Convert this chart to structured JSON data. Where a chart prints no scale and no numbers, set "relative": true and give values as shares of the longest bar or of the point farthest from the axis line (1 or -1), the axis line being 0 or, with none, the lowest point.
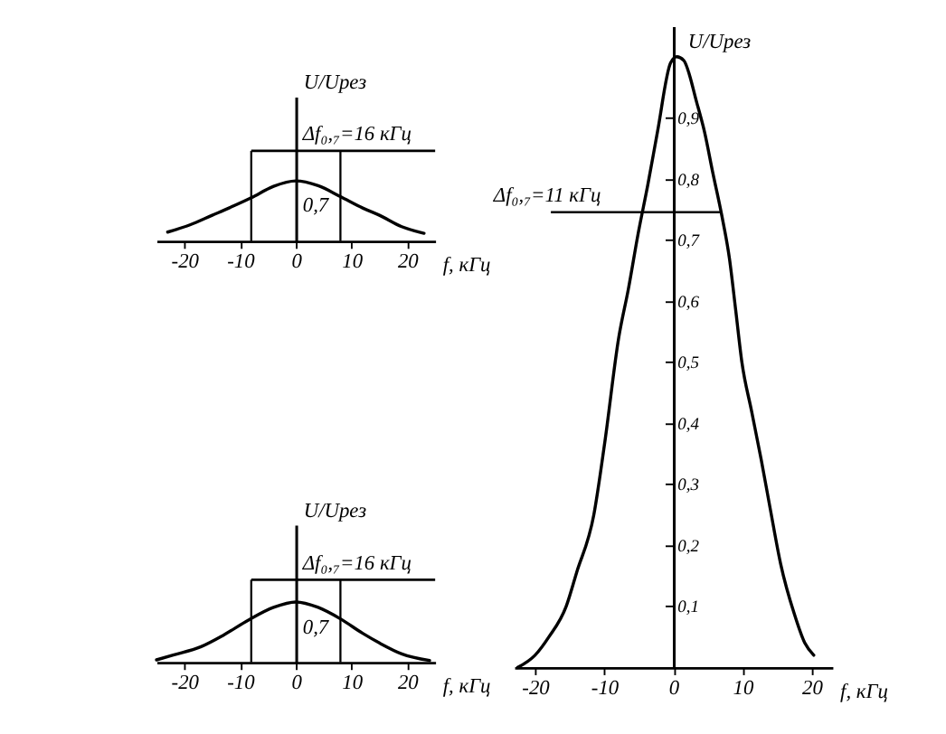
{
  "chart_data": [
    {
      "type": "line",
      "relative": true,
      "color": "#000000",
      "x": [
        -23,
        -19,
        -15,
        -12,
        -8,
        -4,
        0,
        4,
        8,
        12,
        15,
        19,
        23
      ],
      "values": [
        0.15,
        0.27,
        0.43,
        0.55,
        0.72,
        0.91,
        1.0,
        0.92,
        0.74,
        0.55,
        0.43,
        0.24,
        0.13
      ],
      "xlim": [
        -25,
        25
      ],
      "xticks": [
        -20,
        -10,
        0,
        10,
        20
      ],
      "xlabel": "f, кГц",
      "ylabel": "U/Uрез",
      "ref_lines": [
        {
          "axis": "x",
          "value": -8
        },
        {
          "axis": "x",
          "value": 8
        }
      ],
      "annotations": [
        "Δf₀,₇=16 кГц",
        "0,7"
      ]
    },
    {
      "type": "line",
      "relative": true,
      "color": "#000000",
      "x": [
        -25,
        -22,
        -17,
        -13,
        -8.5,
        -4,
        0,
        4,
        8,
        12,
        15,
        19,
        24
      ],
      "values": [
        0.04,
        0.12,
        0.26,
        0.45,
        0.7,
        0.91,
        1.0,
        0.91,
        0.72,
        0.48,
        0.32,
        0.14,
        0.03
      ],
      "xlim": [
        -25,
        25
      ],
      "xticks": [
        -20,
        -10,
        0,
        10,
        20
      ],
      "xlabel": "f, кГц",
      "ylabel": "U/Uрез",
      "ref_lines": [
        {
          "axis": "x",
          "value": -8
        },
        {
          "axis": "x",
          "value": 8
        }
      ],
      "annotations": [
        "Δf₀,₇=16 кГц",
        "0,7"
      ]
    },
    {
      "type": "line",
      "color": "#000000",
      "x": [
        -22.5,
        -20,
        -18,
        -15.5,
        -14,
        -11.5,
        -9.9,
        -7.9,
        -6.5,
        -5.1,
        -3.7,
        -2.3,
        -0.4,
        0.5,
        1.5,
        3.4,
        4.5,
        5.7,
        7.0,
        8.1,
        9.0,
        9.9,
        11.3,
        12.7,
        14,
        15.5,
        17.5,
        19,
        20.3
      ],
      "values": [
        0,
        0.02,
        0.05,
        0.1,
        0.155,
        0.25,
        0.37,
        0.54,
        0.62,
        0.71,
        0.79,
        0.877,
        0.99,
        1.0,
        0.994,
        0.924,
        0.877,
        0.81,
        0.74,
        0.67,
        0.586,
        0.5,
        0.42,
        0.34,
        0.26,
        0.17,
        0.087,
        0.04,
        0.02
      ],
      "xlim": [
        -23,
        23
      ],
      "xticks": [
        -20,
        -10,
        0,
        10,
        20
      ],
      "xlabel": "f, кГц",
      "ylabel": "U/Uрез",
      "ylim": [
        0,
        1.05
      ],
      "yticks": [
        {
          "value": 0.1,
          "label": "0,1"
        },
        {
          "value": 0.2,
          "label": "0,2"
        },
        {
          "value": 0.3,
          "label": "0,3"
        },
        {
          "value": 0.4,
          "label": "0,4"
        },
        {
          "value": 0.5,
          "label": "0,5"
        },
        {
          "value": 0.6,
          "label": "0,6"
        },
        {
          "value": 0.7,
          "label": "0,7"
        },
        {
          "value": 0.8,
          "label": "0,8"
        },
        {
          "value": 0.9,
          "label": "0,9"
        }
      ],
      "annotations": [
        "Δf₀,₇=11 кГц"
      ]
    }
  ]
}
